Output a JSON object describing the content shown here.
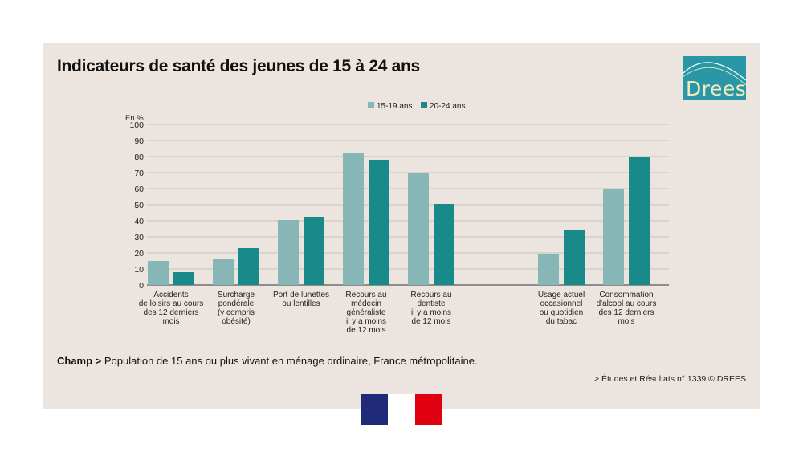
{
  "title": "Indicateurs de santé des jeunes de 15 à 24 ans",
  "logo": {
    "text": "Drees"
  },
  "champ": {
    "label": "Champ >",
    "text": " Population de 15 ans ou plus vivant en ménage ordinaire, France métropolitaine."
  },
  "source": "> Études et Résultats n° 1339 © DREES",
  "colors": {
    "s1": "#86b6b5",
    "s2": "#178a89",
    "panel": "#ece5df",
    "logo": "#2a97a6"
  },
  "chart_data": {
    "type": "bar",
    "ylabel": "En %",
    "ylim": [
      0,
      100
    ],
    "yticks": [
      0,
      10,
      20,
      30,
      40,
      50,
      60,
      70,
      80,
      90,
      100
    ],
    "grid": true,
    "legend_position": "top-center",
    "categories": [
      [
        "Accidents",
        "de loisirs au cours",
        "des 12 derniers",
        "mois"
      ],
      [
        "Surcharge",
        "pondérale",
        "(y compris",
        "obésité)"
      ],
      [
        "Port de lunettes",
        "ou lentilles"
      ],
      [
        "Recours au",
        "médecin",
        "généraliste",
        "il y a moins",
        "de 12 mois"
      ],
      [
        "Recours au",
        "dentiste",
        "il y a moins",
        "de 12 mois"
      ],
      [
        "Usage actuel",
        "occasionnel",
        "ou quotidien",
        "du tabac"
      ],
      [
        "Consommation",
        "d'alcool au cours",
        "des 12 derniers",
        "mois"
      ]
    ],
    "series": [
      {
        "name": "15-19 ans",
        "color": "#86b6b5",
        "values": [
          15,
          16.5,
          40.5,
          82.5,
          70,
          19.5,
          59.5
        ]
      },
      {
        "name": "20-24 ans",
        "color": "#178a89",
        "values": [
          8,
          23,
          42.5,
          78,
          50.5,
          34,
          79.5
        ]
      }
    ]
  }
}
